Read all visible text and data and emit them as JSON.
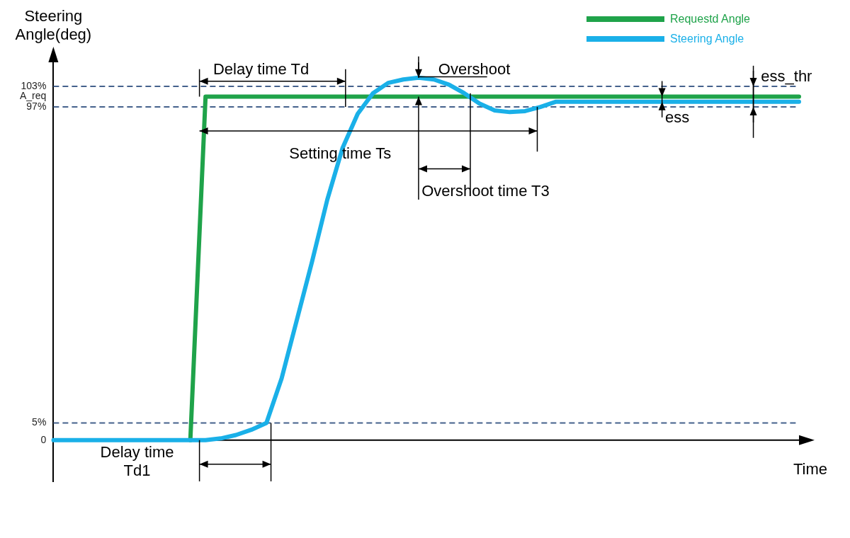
{
  "chart_data": {
    "type": "line",
    "ylabel": "Steering Angle(deg)",
    "xlabel": "Time",
    "categories": [
      null,
      null,
      null,
      null,
      null,
      null,
      null,
      null,
      null,
      null,
      null,
      null,
      null,
      null,
      null,
      null,
      null,
      null,
      null,
      null,
      null,
      null,
      null,
      null,
      null,
      null,
      null,
      null,
      null,
      null,
      null,
      null,
      null,
      null,
      null,
      null,
      null,
      null,
      null,
      null,
      null,
      null,
      null,
      null,
      null,
      null,
      null,
      null,
      null,
      null
    ],
    "series": [
      {
        "name": "Requestd Angle",
        "color": "#1fa34a",
        "values": [
          null,
          null,
          null,
          null,
          null,
          null,
          null,
          null,
          null,
          0,
          100,
          100,
          100,
          100,
          100,
          100,
          100,
          100,
          100,
          100,
          100,
          100,
          100,
          100,
          100,
          100,
          100,
          100,
          100,
          100,
          100,
          100,
          100,
          100,
          100,
          100,
          100,
          100,
          100,
          100,
          100,
          100,
          100,
          100,
          100,
          100,
          100,
          100,
          100,
          100
        ]
      },
      {
        "name": "Steering Angle",
        "color": "#1ab0e8",
        "values": [
          0,
          0,
          0,
          0,
          0,
          0,
          0,
          0,
          0,
          0,
          0,
          0.5,
          1.5,
          3,
          5,
          18,
          35,
          52,
          70,
          85,
          95,
          101,
          104,
          105,
          105.5,
          105,
          103.5,
          101,
          98,
          96,
          95.5,
          95.8,
          97,
          98.5,
          98.5,
          98.5,
          98.5,
          98.5,
          98.5,
          98.5,
          98.5,
          98.5,
          98.5,
          98.5,
          98.5,
          98.5,
          98.5,
          98.5,
          98.5,
          98.5
        ]
      }
    ],
    "ylim": [
      -12,
      110
    ],
    "yticks": [
      {
        "value": 0,
        "label": "0"
      },
      {
        "value": 5,
        "label": "5%"
      },
      {
        "value": 97,
        "label": "97%"
      },
      {
        "value": 100,
        "label": "A_req"
      },
      {
        "value": 103,
        "label": "103%"
      }
    ],
    "tick_labels": "y",
    "grid": false,
    "legend": "top right",
    "marker": "none",
    "line_style": "solid",
    "ref_lines": [
      {
        "axis": "y",
        "value": 103,
        "color": "#44618c",
        "line_style": "dashed"
      },
      {
        "axis": "y",
        "value": 97,
        "color": "#44618c",
        "line_style": "dashed"
      },
      {
        "axis": "y",
        "value": 5,
        "color": "#44618c",
        "line_style": "dashed"
      }
    ],
    "annotations": [
      "Delay time Td",
      "Overshoot",
      "Setting time Ts",
      "Overshoot time T3",
      "ess",
      "ess_thr",
      "Delay time Td1"
    ]
  }
}
